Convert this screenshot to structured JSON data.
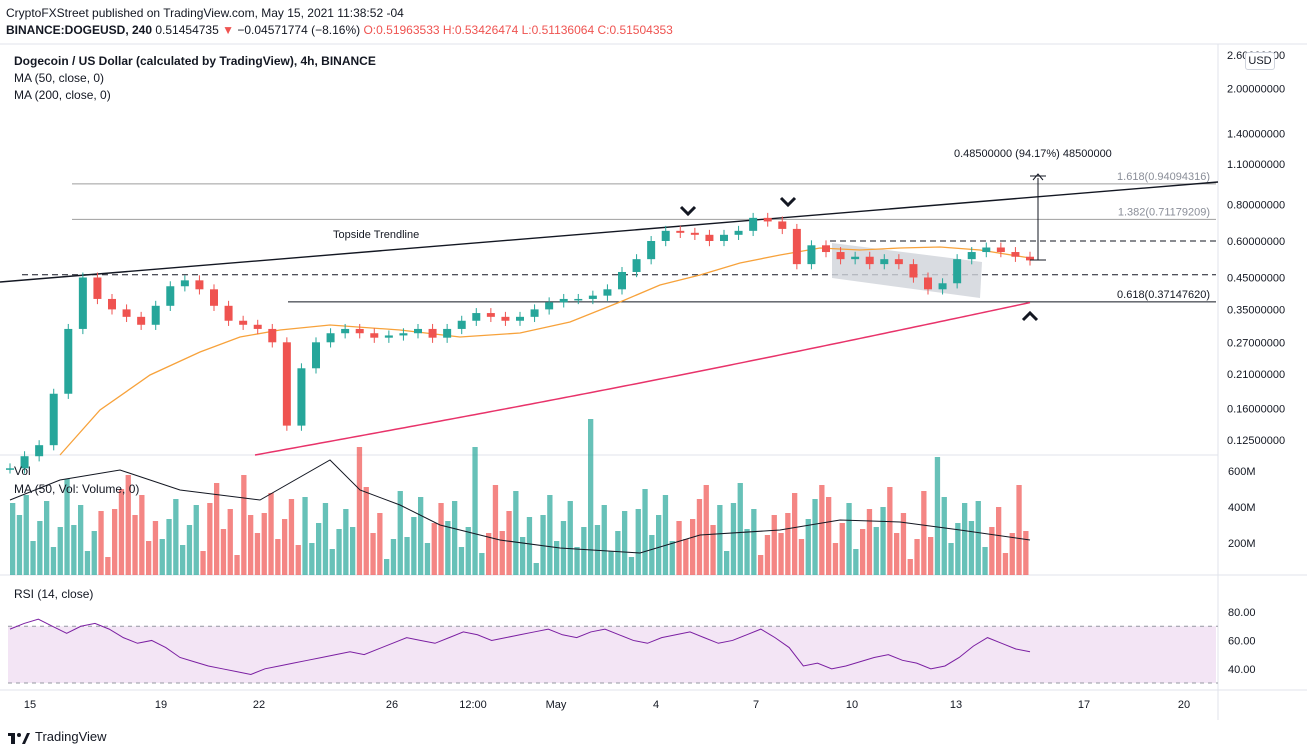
{
  "header": {
    "publisher_line": "CryptoFXStreet published on TradingView.com, May 15, 2021 11:38:52 -04",
    "symbol_line_prefix": "BINANCE:DOGEUSD, 240",
    "symbol_line_price": "0.51454735",
    "symbol_line_change": "−0.04571774 (−8.16%)",
    "symbol_line_ohlc": "O:0.51963533 H:0.53426474 L:0.51136064 C:0.51504353"
  },
  "legend": {
    "title": "Dogecoin / US Dollar (calculated by TradingView), 4h, BINANCE",
    "ma50": "MA (50, close, 0)",
    "ma200": "MA (200, close, 0)",
    "vol": "Vol",
    "vol_ma": "MA (50, Vol: Volume, 0)",
    "rsi": "RSI (14, close)"
  },
  "currency_badge": "USD",
  "footer": {
    "brand": "TradingView"
  },
  "colors": {
    "up": "#26a69a",
    "down": "#ef5350",
    "ma50": "#f7a23b",
    "ma200": "#e8336a",
    "rsi_line": "#7b1fa2",
    "rsi_band": "#f3e5f5",
    "channel_fill": "#cfd3da"
  },
  "chart_data": [
    {
      "type": "candlestick",
      "title": "Dogecoin / US Dollar (calculated by TradingView), 4h, BINANCE",
      "price_axis_scale": "log",
      "y_ticks": [
        "2.60000000",
        "2.00000000",
        "1.40000000",
        "1.10000000",
        "0.80000000",
        "0.60000000",
        "0.45000000",
        "0.35000000",
        "0.27000000",
        "0.21000000",
        "0.16000000",
        "0.12500000"
      ],
      "x_ticks": [
        "15",
        "19",
        "22",
        "26",
        "12:00",
        "May",
        "4",
        "7",
        "10",
        "13",
        "17",
        "20"
      ],
      "annotations": {
        "topside_trendline_label": "Topside Trendline",
        "measured_move_label": "0.48500000 (94.17%) 48500000",
        "fib_1618": "1.618(0.94094316)",
        "fib_1382": "1.382(0.71179209)",
        "fib_0618": "0.618(0.37147620)"
      },
      "fib_levels": [
        0.94094316,
        0.71179209,
        0.3714762
      ],
      "horizontal_levels_dashed": [
        0.6,
        0.46
      ],
      "sampled_closes": [
        0.1,
        0.11,
        0.12,
        0.18,
        0.3,
        0.45,
        0.38,
        0.35,
        0.33,
        0.31,
        0.36,
        0.42,
        0.44,
        0.41,
        0.36,
        0.32,
        0.31,
        0.3,
        0.27,
        0.14,
        0.22,
        0.27,
        0.29,
        0.3,
        0.29,
        0.28,
        0.285,
        0.29,
        0.3,
        0.28,
        0.3,
        0.32,
        0.34,
        0.33,
        0.32,
        0.33,
        0.35,
        0.37,
        0.38,
        0.38,
        0.39,
        0.41,
        0.47,
        0.52,
        0.6,
        0.65,
        0.64,
        0.63,
        0.6,
        0.63,
        0.65,
        0.72,
        0.7,
        0.66,
        0.5,
        0.58,
        0.55,
        0.52,
        0.53,
        0.5,
        0.52,
        0.5,
        0.45,
        0.41,
        0.43,
        0.52,
        0.55,
        0.57,
        0.55,
        0.53,
        0.515
      ]
    },
    {
      "type": "bar",
      "title": "Vol",
      "y_ticks": [
        "600M",
        "400M",
        "200M"
      ]
    },
    {
      "type": "line",
      "title": "RSI (14, close)",
      "y_ticks": [
        "80.00",
        "60.00",
        "40.00"
      ],
      "band": [
        30,
        70
      ],
      "sampled_values": [
        68,
        72,
        75,
        70,
        65,
        70,
        72,
        68,
        62,
        58,
        60,
        55,
        48,
        45,
        42,
        40,
        38,
        36,
        40,
        42,
        44,
        46,
        48,
        50,
        52,
        50,
        54,
        58,
        62,
        60,
        58,
        62,
        66,
        64,
        60,
        62,
        64,
        66,
        68,
        64,
        62,
        66,
        68,
        64,
        60,
        58,
        62,
        64,
        66,
        62,
        58,
        60,
        64,
        68,
        62,
        55,
        42,
        44,
        40,
        42,
        45,
        48,
        50,
        46,
        44,
        40,
        42,
        48,
        56,
        62,
        58,
        54,
        52
      ]
    }
  ]
}
